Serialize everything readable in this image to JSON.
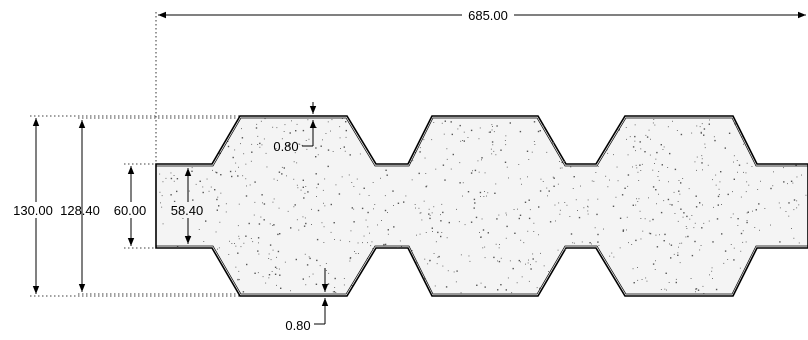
{
  "drawing": {
    "dimensions": {
      "overall_length": "685.00",
      "total_height": "130.00",
      "inner_height": "128.40",
      "web_height": "60.00",
      "web_inner_height": "58.40",
      "top_thickness": "0.80",
      "bottom_thickness": "0.80"
    },
    "colors": {
      "line": "#000000",
      "fill": "#f4f4f4",
      "speckle": "#555555"
    }
  }
}
